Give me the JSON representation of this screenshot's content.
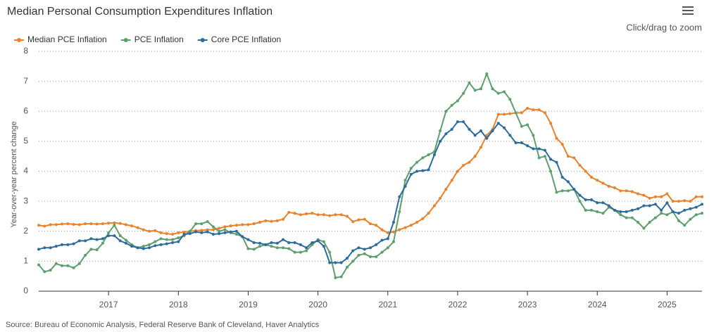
{
  "chart_data": {
    "type": "line",
    "title": "Median Personal Consumption Expenditures Inflation",
    "y_label": "Year-over-year percent change",
    "source": "Source: Bureau of Economic Analysis, Federal Reserve Bank of Cleveland, Haver Analytics",
    "zoom_hint": "Click/drag to zoom",
    "xlim": [
      2016,
      2025.5
    ],
    "xticks": [
      2017,
      2018,
      2019,
      2020,
      2021,
      2022,
      2023,
      2024,
      2025
    ],
    "ylim": [
      0,
      8
    ],
    "yticks": [
      0,
      1,
      2,
      3,
      4,
      5,
      6,
      7,
      8
    ],
    "grid": true,
    "legend": "top-left",
    "x": [
      2016,
      2016.083,
      2016.167,
      2016.25,
      2016.333,
      2016.417,
      2016.5,
      2016.583,
      2016.667,
      2016.75,
      2016.833,
      2016.917,
      2017,
      2017.083,
      2017.167,
      2017.25,
      2017.333,
      2017.417,
      2017.5,
      2017.583,
      2017.667,
      2017.75,
      2017.833,
      2017.917,
      2018,
      2018.083,
      2018.167,
      2018.25,
      2018.333,
      2018.417,
      2018.5,
      2018.583,
      2018.667,
      2018.75,
      2018.833,
      2018.917,
      2019,
      2019.083,
      2019.167,
      2019.25,
      2019.333,
      2019.417,
      2019.5,
      2019.583,
      2019.667,
      2019.75,
      2019.833,
      2019.917,
      2020,
      2020.083,
      2020.167,
      2020.25,
      2020.333,
      2020.417,
      2020.5,
      2020.583,
      2020.667,
      2020.75,
      2020.833,
      2020.917,
      2021,
      2021.083,
      2021.167,
      2021.25,
      2021.333,
      2021.417,
      2021.5,
      2021.583,
      2021.667,
      2021.75,
      2021.833,
      2021.917,
      2022,
      2022.083,
      2022.167,
      2022.25,
      2022.333,
      2022.417,
      2022.5,
      2022.583,
      2022.667,
      2022.75,
      2022.833,
      2022.917,
      2023,
      2023.083,
      2023.167,
      2023.25,
      2023.333,
      2023.417,
      2023.5,
      2023.583,
      2023.667,
      2023.75,
      2023.833,
      2023.917,
      2024,
      2024.083,
      2024.167,
      2024.25,
      2024.333,
      2024.417,
      2024.5,
      2024.583,
      2024.667,
      2024.75,
      2024.833,
      2024.917,
      2025,
      2025.083,
      2025.167,
      2025.25,
      2025.333,
      2025.417,
      2025.5
    ],
    "series": [
      {
        "name": "Median PCE Inflation",
        "color": "#e8822c",
        "values": [
          2.2,
          2.17,
          2.22,
          2.22,
          2.24,
          2.25,
          2.23,
          2.22,
          2.25,
          2.25,
          2.24,
          2.25,
          2.27,
          2.28,
          2.26,
          2.22,
          2.18,
          2.12,
          2.05,
          2.0,
          2.02,
          1.95,
          1.92,
          1.9,
          1.95,
          1.97,
          2.0,
          2.02,
          2.03,
          2.05,
          2.05,
          2.1,
          2.15,
          2.18,
          2.2,
          2.22,
          2.22,
          2.25,
          2.3,
          2.35,
          2.33,
          2.35,
          2.4,
          2.63,
          2.6,
          2.55,
          2.58,
          2.6,
          2.55,
          2.55,
          2.52,
          2.55,
          2.55,
          2.5,
          2.32,
          2.38,
          2.4,
          2.25,
          2.2,
          2.05,
          1.95,
          1.98,
          2.05,
          2.12,
          2.2,
          2.3,
          2.42,
          2.6,
          2.85,
          3.1,
          3.4,
          3.7,
          4.0,
          4.2,
          4.3,
          4.5,
          4.8,
          5.2,
          5.4,
          5.9,
          5.9,
          5.92,
          5.95,
          5.95,
          6.1,
          6.05,
          6.05,
          5.95,
          5.6,
          5.1,
          4.9,
          4.5,
          4.45,
          4.2,
          4.0,
          3.8,
          3.7,
          3.6,
          3.5,
          3.45,
          3.35,
          3.35,
          3.32,
          3.25,
          3.2,
          3.1,
          3.15,
          3.15,
          3.25,
          3.0,
          3.0,
          3.02,
          3.0,
          3.15,
          3.15
        ]
      },
      {
        "name": "PCE Inflation",
        "color": "#5e9e6f",
        "values": [
          0.88,
          0.65,
          0.7,
          0.92,
          0.85,
          0.85,
          0.78,
          0.92,
          1.2,
          1.4,
          1.38,
          1.6,
          1.95,
          2.2,
          1.85,
          1.7,
          1.55,
          1.45,
          1.5,
          1.55,
          1.65,
          1.75,
          1.72,
          1.72,
          1.78,
          1.85,
          2.0,
          2.25,
          2.25,
          2.32,
          2.15,
          2.0,
          2.05,
          1.95,
          1.9,
          1.82,
          1.42,
          1.4,
          1.5,
          1.55,
          1.5,
          1.45,
          1.45,
          1.42,
          1.3,
          1.3,
          1.35,
          1.55,
          1.72,
          1.65,
          1.3,
          0.45,
          0.48,
          0.8,
          1.0,
          1.2,
          1.25,
          1.15,
          1.15,
          1.3,
          1.45,
          1.65,
          2.65,
          3.7,
          4.1,
          4.3,
          4.45,
          4.55,
          4.65,
          5.35,
          6.0,
          6.2,
          6.35,
          6.6,
          6.95,
          6.7,
          6.75,
          7.25,
          6.75,
          6.6,
          6.65,
          6.4,
          5.95,
          5.5,
          5.55,
          5.2,
          4.45,
          4.5,
          4.0,
          3.3,
          3.35,
          3.35,
          3.4,
          3.0,
          2.7,
          2.7,
          2.65,
          2.6,
          2.8,
          2.7,
          2.55,
          2.45,
          2.45,
          2.3,
          2.1,
          2.3,
          2.45,
          2.6,
          2.55,
          2.65,
          2.35,
          2.2,
          2.4,
          2.55,
          2.6
        ]
      },
      {
        "name": "Core PCE Inflation",
        "color": "#2c6b9b",
        "values": [
          1.4,
          1.45,
          1.45,
          1.5,
          1.55,
          1.55,
          1.58,
          1.68,
          1.68,
          1.75,
          1.72,
          1.75,
          1.85,
          1.85,
          1.68,
          1.6,
          1.5,
          1.45,
          1.42,
          1.45,
          1.52,
          1.55,
          1.58,
          1.62,
          1.65,
          1.9,
          1.92,
          1.98,
          1.95,
          1.98,
          1.9,
          1.92,
          1.95,
          1.98,
          2.0,
          1.82,
          1.72,
          1.62,
          1.6,
          1.55,
          1.62,
          1.6,
          1.72,
          1.62,
          1.62,
          1.55,
          1.45,
          1.62,
          1.68,
          1.5,
          0.95,
          0.95,
          0.95,
          1.1,
          1.35,
          1.45,
          1.4,
          1.45,
          1.55,
          1.7,
          1.75,
          2.3,
          3.15,
          3.5,
          3.9,
          4.0,
          4.02,
          4.05,
          4.55,
          5.0,
          5.25,
          5.4,
          5.65,
          5.65,
          5.4,
          5.2,
          5.35,
          5.1,
          5.35,
          5.6,
          5.45,
          5.2,
          4.95,
          4.95,
          4.85,
          4.75,
          4.75,
          4.7,
          4.4,
          4.3,
          3.8,
          3.65,
          3.4,
          3.2,
          3.05,
          3.05,
          2.95,
          2.95,
          2.85,
          2.7,
          2.65,
          2.65,
          2.7,
          2.75,
          2.85,
          2.85,
          2.9,
          2.7,
          2.95,
          2.65,
          2.6,
          2.7,
          2.75,
          2.8,
          2.9
        ]
      }
    ]
  }
}
